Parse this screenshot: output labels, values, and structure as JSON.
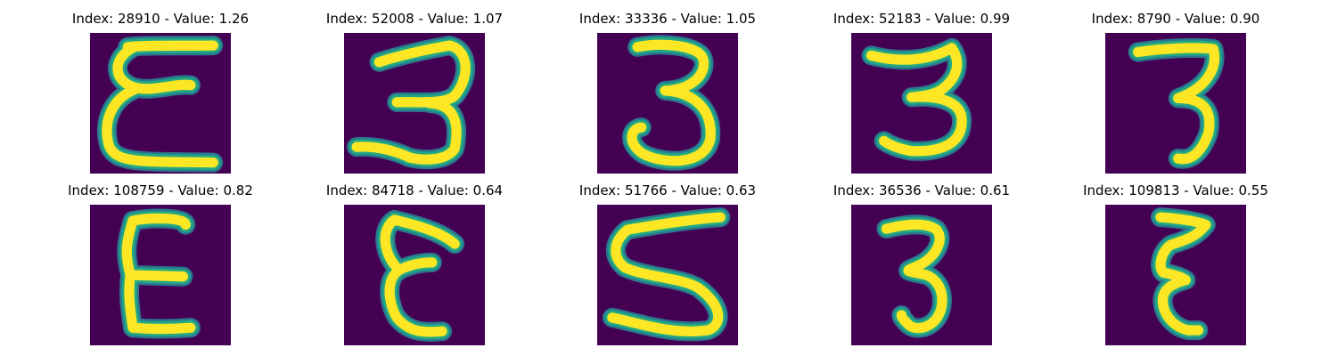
{
  "colors": {
    "background": "#440154",
    "stroke_low": "#2a788e",
    "stroke_mid": "#22a884",
    "stroke_high": "#fde725",
    "figure_background": "#ffffff",
    "title_text": "#000000"
  },
  "panels": [
    {
      "title": "Index: 28910 - Value: 1.26",
      "digit_shape": "three-flat-top-wide",
      "grid": 28
    },
    {
      "title": "Index: 52008 - Value: 1.07",
      "digit_shape": "three-wide",
      "grid": 28
    },
    {
      "title": "Index: 33336 - Value: 1.05",
      "digit_shape": "three-round",
      "grid": 28
    },
    {
      "title": "Index: 52183 - Value: 0.99",
      "digit_shape": "three-flat-top",
      "grid": 28
    },
    {
      "title": "Index: 8790 - Value: 0.90",
      "digit_shape": "three-bold",
      "grid": 28
    },
    {
      "title": "Index: 108759 - Value: 0.82",
      "digit_shape": "three-bold-narrow",
      "grid": 28
    },
    {
      "title": "Index: 84718 - Value: 0.64",
      "digit_shape": "three-curly",
      "grid": 28
    },
    {
      "title": "Index: 51766 - Value: 0.63",
      "digit_shape": "five-like",
      "grid": 28
    },
    {
      "title": "Index: 36536 - Value: 0.61",
      "digit_shape": "three-thin",
      "grid": 28
    },
    {
      "title": "Index: 109813 - Value: 0.55",
      "digit_shape": "three-narrow",
      "grid": 28
    }
  ]
}
